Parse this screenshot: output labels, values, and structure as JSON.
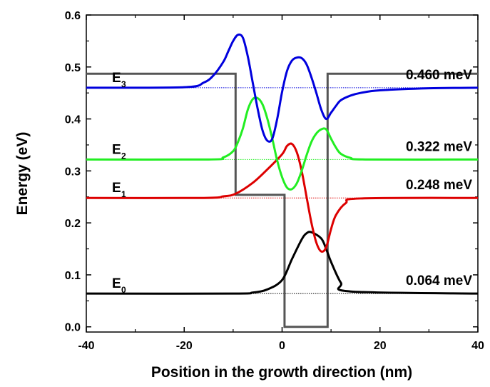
{
  "chart_data": {
    "type": "line",
    "title": "",
    "xlabel": "Position in the growth direction (nm)",
    "ylabel": "Energy (eV)",
    "xlim": [
      -40,
      40
    ],
    "ylim": [
      -0.01,
      0.6
    ],
    "xticks": [
      -40,
      -20,
      0,
      20,
      40
    ],
    "xtick_labels": [
      "-40",
      "-20",
      "0",
      "20",
      "40"
    ],
    "yticks": [
      0.0,
      0.1,
      0.2,
      0.3,
      0.4,
      0.5,
      0.6
    ],
    "ytick_labels": [
      "0.0",
      "0.1",
      "0.2",
      "0.3",
      "0.4",
      "0.5",
      "0.6"
    ],
    "grid": false,
    "legend": "none",
    "potential_profile": {
      "color": "#555555",
      "x": [
        -40,
        -9.5,
        -9.5,
        0.5,
        0.5,
        9.3,
        9.3,
        40
      ],
      "y": [
        0.487,
        0.487,
        0.254,
        0.254,
        0.0,
        0.0,
        0.487,
        0.487
      ]
    },
    "levels": [
      {
        "name": "E",
        "sub": "0",
        "energy": 0.064,
        "annotation": "0.064 meV",
        "color": "#000000",
        "x": [
          -40,
          -10,
          -6,
          -3,
          0,
          2,
          4,
          5,
          6,
          8,
          9,
          10,
          12,
          14,
          40
        ],
        "y": [
          0.064,
          0.064,
          0.066,
          0.072,
          0.09,
          0.13,
          0.168,
          0.18,
          0.182,
          0.17,
          0.15,
          0.125,
          0.085,
          0.068,
          0.064
        ]
      },
      {
        "name": "E",
        "sub": "1",
        "energy": 0.248,
        "annotation": "0.248 meV",
        "color": "#dd0000",
        "x": [
          -40,
          -16,
          -12,
          -9.5,
          -6,
          -3,
          0,
          1,
          2,
          3,
          4,
          5,
          6,
          7,
          8,
          9,
          10,
          11,
          13,
          16,
          40
        ],
        "y": [
          0.248,
          0.248,
          0.251,
          0.256,
          0.277,
          0.303,
          0.332,
          0.348,
          0.352,
          0.336,
          0.3,
          0.25,
          0.2,
          0.162,
          0.145,
          0.153,
          0.188,
          0.215,
          0.238,
          0.247,
          0.248
        ]
      },
      {
        "name": "E",
        "sub": "2",
        "energy": 0.322,
        "annotation": "0.322 meV",
        "color": "#22ee22",
        "x": [
          -40,
          -15,
          -12,
          -10,
          -9,
          -8,
          -7,
          -6,
          -5,
          -4,
          -3,
          -2,
          -1,
          0,
          1,
          2,
          3,
          4,
          5,
          6,
          7,
          8,
          9,
          10,
          11,
          12,
          14,
          17,
          40
        ],
        "y": [
          0.322,
          0.322,
          0.326,
          0.338,
          0.356,
          0.382,
          0.418,
          0.438,
          0.44,
          0.428,
          0.4,
          0.362,
          0.32,
          0.288,
          0.268,
          0.265,
          0.276,
          0.3,
          0.33,
          0.356,
          0.372,
          0.38,
          0.38,
          0.362,
          0.345,
          0.333,
          0.325,
          0.322,
          0.322
        ]
      },
      {
        "name": "E",
        "sub": "3",
        "energy": 0.46,
        "annotation": "0.460 meV",
        "color": "#0000dd",
        "x": [
          -40,
          -20,
          -16,
          -14,
          -12,
          -11,
          -10,
          -9,
          -8,
          -7,
          -6,
          -5,
          -4,
          -3,
          -2,
          -1,
          0,
          1,
          2,
          3,
          4,
          5,
          6,
          7,
          8,
          9,
          10,
          11,
          12,
          14,
          16,
          20,
          30,
          40
        ],
        "y": [
          0.46,
          0.461,
          0.47,
          0.484,
          0.51,
          0.53,
          0.55,
          0.562,
          0.556,
          0.52,
          0.47,
          0.42,
          0.378,
          0.358,
          0.362,
          0.4,
          0.452,
          0.492,
          0.512,
          0.518,
          0.517,
          0.505,
          0.48,
          0.45,
          0.418,
          0.4,
          0.412,
          0.425,
          0.436,
          0.445,
          0.45,
          0.455,
          0.459,
          0.46
        ]
      }
    ]
  }
}
